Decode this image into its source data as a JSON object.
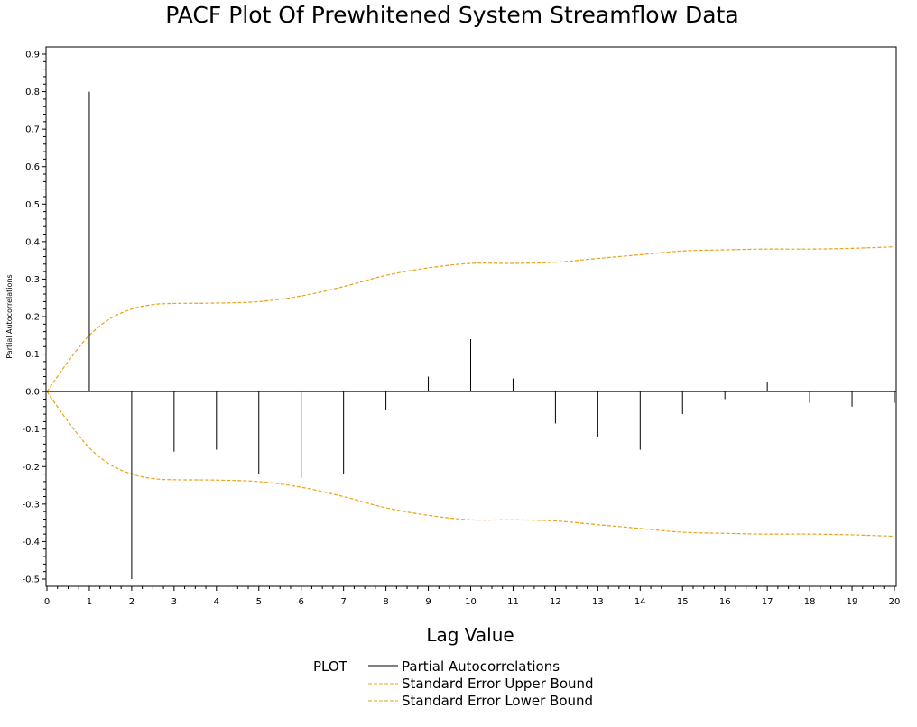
{
  "chart_data": {
    "type": "bar",
    "title": "PACF Plot Of Prewhitened System Streamflow Data",
    "xlabel": "Lag Value",
    "ylabel": "Partial Autocorrelations",
    "xlim": [
      0,
      20
    ],
    "ylim": [
      -0.5,
      0.9
    ],
    "x_ticks": [
      0,
      1,
      2,
      3,
      4,
      5,
      6,
      7,
      8,
      9,
      10,
      11,
      12,
      13,
      14,
      15,
      16,
      17,
      18,
      19,
      20
    ],
    "y_ticks": [
      "-0.5",
      "-0.4",
      "-0.3",
      "-0.2",
      "-0.1",
      "0.0",
      "0.1",
      "0.2",
      "0.3",
      "0.4",
      "0.5",
      "0.6",
      "0.7",
      "0.8",
      "0.9"
    ],
    "grid": false,
    "series": [
      {
        "name": "Partial Autocorrelations",
        "style": "needle",
        "color": "#000000",
        "x": [
          1,
          2,
          3,
          4,
          5,
          6,
          7,
          8,
          9,
          10,
          11,
          12,
          13,
          14,
          15,
          16,
          17,
          18,
          19,
          20
        ],
        "values": [
          0.8,
          -0.5,
          -0.16,
          -0.155,
          -0.22,
          -0.23,
          -0.22,
          -0.05,
          0.04,
          0.14,
          0.035,
          -0.085,
          -0.12,
          -0.155,
          -0.06,
          -0.02,
          0.025,
          -0.03,
          -0.04,
          -0.03
        ]
      },
      {
        "name": "Standard Error Upper Bound",
        "style": "dashed-line",
        "color": "#E8A317",
        "x": [
          0,
          0.5,
          1,
          1.5,
          2,
          2.5,
          3,
          4,
          5,
          6,
          7,
          8,
          9,
          10,
          11,
          12,
          13,
          14,
          15,
          16,
          17,
          18,
          19,
          20
        ],
        "values": [
          0.0,
          0.08,
          0.15,
          0.195,
          0.22,
          0.232,
          0.235,
          0.236,
          0.24,
          0.255,
          0.28,
          0.31,
          0.33,
          0.342,
          0.342,
          0.345,
          0.355,
          0.365,
          0.375,
          0.378,
          0.38,
          0.38,
          0.382,
          0.386
        ]
      },
      {
        "name": "Standard Error Lower Bound",
        "style": "dashed-line",
        "color": "#E8A317",
        "x": [
          0,
          0.5,
          1,
          1.5,
          2,
          2.5,
          3,
          4,
          5,
          6,
          7,
          8,
          9,
          10,
          11,
          12,
          13,
          14,
          15,
          16,
          17,
          18,
          19,
          20
        ],
        "values": [
          0.0,
          -0.08,
          -0.15,
          -0.195,
          -0.22,
          -0.232,
          -0.235,
          -0.236,
          -0.24,
          -0.255,
          -0.28,
          -0.31,
          -0.33,
          -0.342,
          -0.342,
          -0.345,
          -0.355,
          -0.365,
          -0.375,
          -0.378,
          -0.38,
          -0.38,
          -0.382,
          -0.386
        ]
      }
    ],
    "legend": {
      "placement": "bottom-center",
      "title": "PLOT"
    }
  }
}
